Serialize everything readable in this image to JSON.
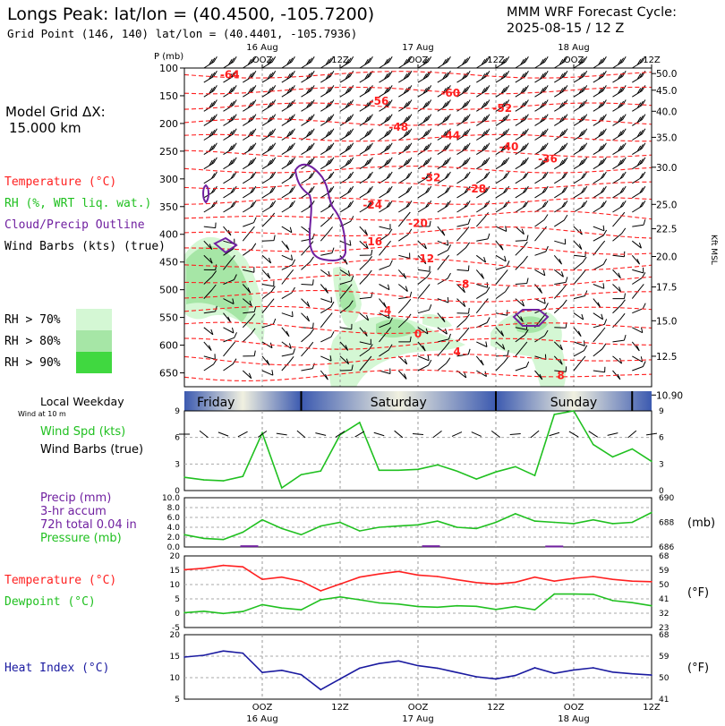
{
  "header": {
    "title": "Longs Peak:  lat/lon = (40.4500, -105.7200)",
    "subtitle": "Grid Point (146, 140) lat/lon = (40.4401, -105.7936)",
    "cycle_label": "MMM WRF Forecast Cycle:",
    "cycle_value": "2025-08-15 / 12  Z",
    "model_grid_label": "Model Grid ΔX:",
    "model_grid_value": "15.000 km"
  },
  "time_axis": {
    "top_labels": [
      {
        "t": 12,
        "line1": "16 Aug",
        "line2": "OOZ"
      },
      {
        "t": 24,
        "line1": "",
        "line2": "12Z"
      },
      {
        "t": 36,
        "line1": "17 Aug",
        "line2": "OOZ"
      },
      {
        "t": 48,
        "line1": "",
        "line2": "12Z"
      },
      {
        "t": 60,
        "line1": "18 Aug",
        "line2": "OOZ"
      },
      {
        "t": 72,
        "line1": "",
        "line2": "12Z"
      }
    ],
    "bottom_labels": [
      {
        "t": 12,
        "line1": "OOZ",
        "line2": "16 Aug"
      },
      {
        "t": 24,
        "line1": "12Z",
        "line2": ""
      },
      {
        "t": 36,
        "line1": "OOZ",
        "line2": "17 Aug"
      },
      {
        "t": 48,
        "line1": "12Z",
        "line2": ""
      },
      {
        "t": 60,
        "line1": "OOZ",
        "line2": "18 Aug"
      },
      {
        "t": 72,
        "line1": "12Z",
        "line2": ""
      }
    ],
    "range_hours": [
      0,
      72
    ]
  },
  "colors": {
    "temperature": "#ff2020",
    "rh": "#20c020",
    "cloud": "#7020a0",
    "wind": "#000000",
    "precip": "#7020a0",
    "pressure": "#20c020",
    "heat_index": "#1a1aa0",
    "rh70": "#d4f7d4",
    "rh80": "#a6e6a6",
    "rh90": "#40d840",
    "weekday_band": "#3c5ab0"
  },
  "chart_data": [
    {
      "type": "area",
      "name": "cross_section",
      "yaxis_label": "P (mb)",
      "right_axis_label": "Kft MSL",
      "y_ticks": [
        100,
        150,
        200,
        250,
        300,
        350,
        400,
        450,
        500,
        550,
        600,
        650
      ],
      "ylim": [
        675,
        100
      ],
      "right_ticks": [
        {
          "p": 110,
          "label": "50.0"
        },
        {
          "p": 140,
          "label": "45.0"
        },
        {
          "p": 178,
          "label": "40.0"
        },
        {
          "p": 225,
          "label": "35.0"
        },
        {
          "p": 279,
          "label": "30.0"
        },
        {
          "p": 346,
          "label": "25.0"
        },
        {
          "p": 390,
          "label": "22.5"
        },
        {
          "p": 440,
          "label": "20.0"
        },
        {
          "p": 495,
          "label": "17.5"
        },
        {
          "p": 556,
          "label": "15.0"
        },
        {
          "p": 620,
          "label": "12.5"
        },
        {
          "p": 690,
          "label": "10.90"
        }
      ],
      "legend": [
        {
          "label": "Temperature (°C)",
          "color": "#ff2020"
        },
        {
          "label": "RH (%, WRT liq. wat.)",
          "color": "#20c020"
        },
        {
          "label": "Cloud/Precip Outline",
          "color": "#7020a0"
        },
        {
          "label": "Wind Barbs (kts) (true)",
          "color": "#000000"
        }
      ],
      "rh_legend": [
        {
          "label": "RH > 70%",
          "color": "#d4f7d4"
        },
        {
          "label": "RH > 80%",
          "color": "#a6e6a6"
        },
        {
          "label": "RH > 90%",
          "color": "#40d840"
        }
      ],
      "temperature_labels": [
        {
          "text": "-64",
          "t": 7,
          "p": 112
        },
        {
          "text": "-60",
          "t": 41,
          "p": 145
        },
        {
          "text": "-56",
          "t": 30,
          "p": 160
        },
        {
          "text": "-52",
          "t": 49,
          "p": 173
        },
        {
          "text": "-48",
          "t": 33,
          "p": 207
        },
        {
          "text": "-44",
          "t": 41,
          "p": 222
        },
        {
          "text": "-40",
          "t": 50,
          "p": 242
        },
        {
          "text": "-36",
          "t": 56,
          "p": 264
        },
        {
          "text": "-32",
          "t": 38,
          "p": 298
        },
        {
          "text": "-28",
          "t": 45,
          "p": 318
        },
        {
          "text": "-24",
          "t": 29,
          "p": 347
        },
        {
          "text": "-20",
          "t": 36,
          "p": 380
        },
        {
          "text": "-16",
          "t": 29,
          "p": 413
        },
        {
          "text": "-12",
          "t": 37,
          "p": 444
        },
        {
          "text": "-8",
          "t": 43,
          "p": 490
        },
        {
          "text": "-4",
          "t": 31,
          "p": 538
        },
        {
          "text": "0",
          "t": 36,
          "p": 580
        },
        {
          "text": "4",
          "t": 42,
          "p": 612
        },
        {
          "text": "8",
          "t": 58,
          "p": 655
        }
      ]
    },
    {
      "type": "line",
      "name": "wind_speed",
      "title": "Local Weekday",
      "note": "Wind at 10 m",
      "days": [
        {
          "label": "Friday",
          "t_start": 0,
          "t_end": 18
        },
        {
          "label": "Saturday",
          "t_start": 18,
          "t_end": 48
        },
        {
          "label": "Sunday",
          "t_start": 48,
          "t_end": 72
        }
      ],
      "labels": [
        "Wind Spd (kts)",
        "Wind Barbs (true)"
      ],
      "y_ticks": [
        0,
        3,
        6,
        9
      ],
      "ylim": [
        0,
        9
      ],
      "x": [
        0,
        3,
        6,
        9,
        12,
        15,
        18,
        21,
        24,
        27,
        30,
        33,
        36,
        39,
        42,
        45,
        48,
        51,
        54,
        57,
        60,
        63,
        66,
        69,
        72
      ],
      "series": [
        {
          "name": "Wind Spd (kts)",
          "values": [
            1.5,
            1.2,
            1.1,
            1.6,
            6.5,
            0.3,
            1.8,
            2.2,
            6.3,
            7.7,
            2.3,
            2.3,
            2.4,
            2.9,
            2.2,
            1.3,
            2.1,
            2.7,
            1.7,
            8.6,
            9.0,
            5.2,
            3.8,
            4.7,
            3.3
          ]
        }
      ]
    },
    {
      "type": "line",
      "name": "precip_pressure",
      "labels": [
        "Precip (mm)",
        "3-hr accum",
        "72h total 0.04 in",
        "Pressure (mb)"
      ],
      "unit_right": "(mb)",
      "y_ticks": [
        0.0,
        2.0,
        4.0,
        6.0,
        8.0,
        10.0
      ],
      "ylim": [
        0,
        10
      ],
      "right_ticks": [
        686,
        688,
        690
      ],
      "right_lim": [
        686,
        690
      ],
      "x": [
        0,
        3,
        6,
        9,
        12,
        15,
        18,
        21,
        24,
        27,
        30,
        33,
        36,
        39,
        42,
        45,
        48,
        51,
        54,
        57,
        60,
        63,
        66,
        69,
        72
      ],
      "series": [
        {
          "name": "Pressure (mb)",
          "values": [
            687.0,
            686.7,
            686.6,
            687.2,
            688.2,
            687.5,
            687.0,
            687.7,
            688.0,
            687.3,
            687.6,
            687.7,
            687.8,
            688.1,
            687.6,
            687.5,
            688.0,
            688.7,
            688.1,
            688.0,
            687.9,
            688.2,
            687.9,
            688.0,
            688.8
          ]
        },
        {
          "name": "Precip (mm)",
          "bars": [
            {
              "t": 10,
              "v": 0.15
            },
            {
              "t": 38,
              "v": 0.15
            },
            {
              "t": 57,
              "v": 0.1
            }
          ]
        }
      ]
    },
    {
      "type": "line",
      "name": "temperature",
      "labels": [
        "Temperature (°C)",
        "Dewpoint (°C)"
      ],
      "unit_right": "(°F)",
      "y_ticks": [
        -5,
        0,
        5,
        10,
        15,
        20
      ],
      "ylim": [
        -5,
        20
      ],
      "right_ticks": [
        23,
        32,
        41,
        50,
        59,
        68
      ],
      "x": [
        0,
        3,
        6,
        9,
        12,
        15,
        18,
        21,
        24,
        27,
        30,
        33,
        36,
        39,
        42,
        45,
        48,
        51,
        54,
        57,
        60,
        63,
        66,
        69,
        72
      ],
      "series": [
        {
          "name": "Temperature (°C)",
          "values": [
            15.2,
            15.7,
            16.7,
            16.2,
            11.8,
            12.6,
            11.2,
            7.8,
            10.2,
            12.6,
            13.7,
            14.6,
            13.3,
            12.8,
            11.7,
            10.7,
            10.2,
            10.8,
            12.6,
            11.2,
            12.2,
            12.8,
            11.8,
            11.2,
            11.0
          ]
        },
        {
          "name": "Dewpoint (°C)",
          "values": [
            0.2,
            0.7,
            -0.1,
            0.6,
            3.0,
            1.8,
            1.2,
            4.7,
            5.7,
            4.7,
            3.6,
            3.2,
            2.3,
            2.1,
            2.6,
            2.4,
            1.3,
            2.3,
            1.2,
            6.7,
            6.7,
            6.6,
            4.4,
            3.7,
            2.6
          ]
        }
      ]
    },
    {
      "type": "line",
      "name": "heat_index",
      "labels": [
        "Heat Index (°C)"
      ],
      "unit_right": "(°F)",
      "y_ticks": [
        5,
        10,
        15,
        20
      ],
      "ylim": [
        5,
        20
      ],
      "right_ticks": [
        41,
        50,
        59,
        68
      ],
      "x": [
        0,
        3,
        6,
        9,
        12,
        15,
        18,
        21,
        24,
        27,
        30,
        33,
        36,
        39,
        42,
        45,
        48,
        51,
        54,
        57,
        60,
        63,
        66,
        69,
        72
      ],
      "series": [
        {
          "name": "Heat Index (°C)",
          "values": [
            14.8,
            15.2,
            16.2,
            15.7,
            11.2,
            11.7,
            10.7,
            7.2,
            9.7,
            12.2,
            13.3,
            13.9,
            12.8,
            12.2,
            11.2,
            10.2,
            9.7,
            10.5,
            12.3,
            11.0,
            11.8,
            12.3,
            11.3,
            10.9,
            10.6
          ]
        }
      ]
    }
  ]
}
